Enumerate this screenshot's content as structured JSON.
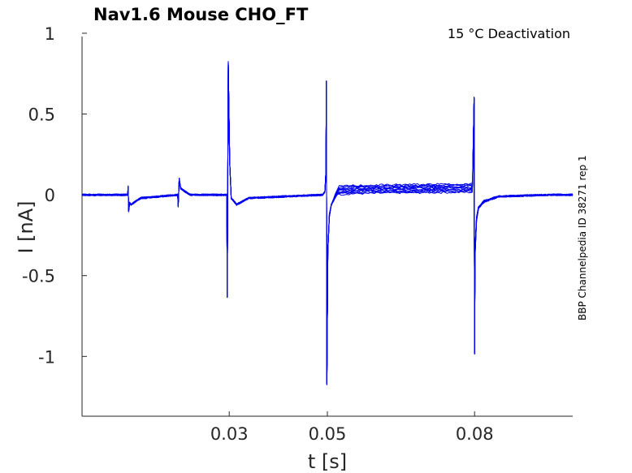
{
  "chart_data": {
    "type": "line",
    "title": "Nav1.6  Mouse  CHO_FT",
    "annotation": "15 °C  Deactivation",
    "side_label": "BBP Channelpedia ID 38271 rep 1",
    "xlabel": "t [s]",
    "ylabel": "I [nA]",
    "xlim": [
      0,
      0.1
    ],
    "ylim": [
      -1.37,
      1.03
    ],
    "xticks": [
      0.03,
      0.05,
      0.08
    ],
    "xtick_labels": [
      "0.03",
      "0.05",
      "0.08"
    ],
    "yticks": [
      1,
      0.5,
      0,
      -0.5,
      -1
    ],
    "ytick_labels": [
      "1",
      "0.5",
      "0",
      "-0.5",
      "-1"
    ],
    "grid": false,
    "line_color": "#0000ee",
    "sweeps": 12,
    "tail_plateau_range_nA": [
      0.01,
      0.06
    ],
    "series": [
      {
        "x": [
          0,
          0.005,
          0.0093,
          0.0094,
          0.0095,
          0.0097,
          0.01,
          0.012,
          0.0195,
          0.0196,
          0.0198,
          0.0201,
          0.022,
          0.0295,
          0.0296,
          0.0298,
          0.0301,
          0.0304,
          0.0315,
          0.034,
          0.049,
          0.0495,
          0.0497,
          0.0498,
          0.0499,
          0.0501,
          0.0504,
          0.0508,
          0.052,
          0.055,
          0.065,
          0.0795,
          0.0799,
          0.08,
          0.0801,
          0.0804,
          0.0808,
          0.082,
          0.085,
          0.095,
          0.1
        ],
        "y": [
          0.0,
          0.0,
          0.0,
          0.05,
          -0.1,
          -0.05,
          -0.06,
          -0.02,
          0.0,
          -0.07,
          0.1,
          0.04,
          0.0,
          0.0,
          -0.63,
          0.82,
          0.2,
          -0.02,
          -0.06,
          -0.02,
          0.0,
          0.02,
          0.14,
          0.7,
          -1.17,
          -0.35,
          -0.15,
          -0.08,
          0.0,
          0.02,
          0.04,
          0.05,
          0.6,
          -0.98,
          -0.35,
          -0.15,
          -0.08,
          -0.04,
          -0.01,
          0.0,
          0.0
        ]
      }
    ]
  }
}
